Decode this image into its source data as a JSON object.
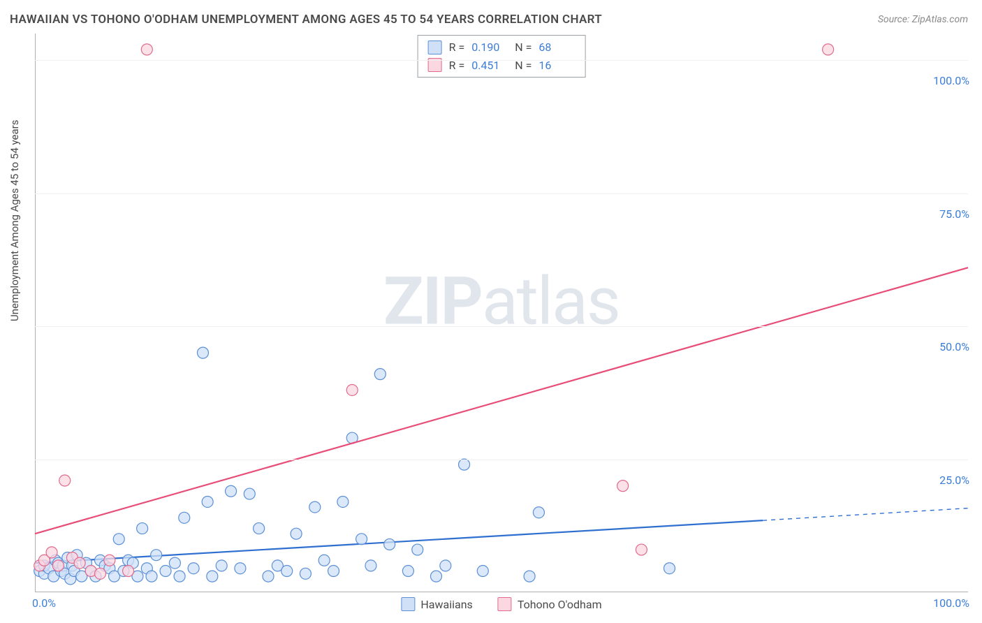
{
  "title": "HAWAIIAN VS TOHONO O'ODHAM UNEMPLOYMENT AMONG AGES 45 TO 54 YEARS CORRELATION CHART",
  "source": "Source: ZipAtlas.com",
  "ylabel": "Unemployment Among Ages 45 to 54 years",
  "watermark_a": "ZIP",
  "watermark_b": "atlas",
  "chart": {
    "type": "scatter+regression",
    "xlim": [
      0,
      100
    ],
    "ylim": [
      0,
      105
    ],
    "y_ticks": [
      {
        "v": 25,
        "label": "25.0%"
      },
      {
        "v": 50,
        "label": "50.0%"
      },
      {
        "v": 75,
        "label": "75.0%"
      },
      {
        "v": 100,
        "label": "100.0%"
      }
    ],
    "x_ticks": [
      {
        "v": 0,
        "label": "0.0%"
      },
      {
        "v": 100,
        "label": "100.0%"
      }
    ],
    "background_color": "#ffffff",
    "grid_color": "#f0f0f0",
    "axis_color": "#b0b0b0",
    "tick_label_color": "#3b7dd8",
    "marker_radius": 8,
    "marker_stroke_width": 1.2,
    "line_width": 2.2,
    "series": [
      {
        "key": "hawaiians",
        "name": "Hawaiians",
        "fill": "#cfe0f7",
        "stroke": "#5b8fd6",
        "line_color": "#2f6fd0",
        "R": "0.190",
        "N": "68",
        "regression": {
          "x1": 0,
          "y1": 5.5,
          "x2": 78,
          "y2": 13.5,
          "dash_from_x": 78,
          "dash_to_x": 100,
          "dash_to_y": 15.8
        },
        "points": [
          [
            0.5,
            4
          ],
          [
            1,
            3.5
          ],
          [
            1,
            5
          ],
          [
            1.5,
            4.5
          ],
          [
            2,
            3
          ],
          [
            2.2,
            6
          ],
          [
            2.5,
            5.5
          ],
          [
            2.8,
            4
          ],
          [
            3,
            5
          ],
          [
            3.2,
            3.5
          ],
          [
            3.5,
            6.5
          ],
          [
            3.8,
            2.5
          ],
          [
            4,
            5
          ],
          [
            4.2,
            4
          ],
          [
            4.5,
            7
          ],
          [
            5,
            3
          ],
          [
            5.5,
            5.5
          ],
          [
            6,
            4
          ],
          [
            6.5,
            3
          ],
          [
            7,
            6
          ],
          [
            7.5,
            5
          ],
          [
            8,
            4.5
          ],
          [
            8.5,
            3
          ],
          [
            9,
            10
          ],
          [
            9.5,
            4
          ],
          [
            10,
            6
          ],
          [
            10.5,
            5.5
          ],
          [
            11,
            3
          ],
          [
            11.5,
            12
          ],
          [
            12,
            4.5
          ],
          [
            12.5,
            3
          ],
          [
            13,
            7
          ],
          [
            14,
            4
          ],
          [
            15,
            5.5
          ],
          [
            15.5,
            3
          ],
          [
            16,
            14
          ],
          [
            17,
            4.5
          ],
          [
            18,
            45
          ],
          [
            18.5,
            17
          ],
          [
            19,
            3
          ],
          [
            20,
            5
          ],
          [
            21,
            19
          ],
          [
            22,
            4.5
          ],
          [
            23,
            18.5
          ],
          [
            24,
            12
          ],
          [
            25,
            3
          ],
          [
            26,
            5
          ],
          [
            27,
            4
          ],
          [
            28,
            11
          ],
          [
            29,
            3.5
          ],
          [
            30,
            16
          ],
          [
            31,
            6
          ],
          [
            32,
            4
          ],
          [
            33,
            17
          ],
          [
            34,
            29
          ],
          [
            35,
            10
          ],
          [
            36,
            5
          ],
          [
            37,
            41
          ],
          [
            38,
            9
          ],
          [
            40,
            4
          ],
          [
            41,
            8
          ],
          [
            43,
            3
          ],
          [
            44,
            5
          ],
          [
            46,
            24
          ],
          [
            48,
            4
          ],
          [
            53,
            3
          ],
          [
            54,
            15
          ],
          [
            68,
            4.5
          ]
        ]
      },
      {
        "key": "tohono",
        "name": "Tohono O'odham",
        "fill": "#fbd7e1",
        "stroke": "#e06b8c",
        "line_color": "#e84d77",
        "R": "0.451",
        "N": "16",
        "regression": {
          "x1": 0,
          "y1": 11,
          "x2": 100,
          "y2": 61
        },
        "points": [
          [
            0.5,
            5
          ],
          [
            1,
            6
          ],
          [
            1.8,
            7.5
          ],
          [
            2.5,
            5
          ],
          [
            3.2,
            21
          ],
          [
            4,
            6.5
          ],
          [
            4.8,
            5.5
          ],
          [
            6,
            4
          ],
          [
            7,
            3.5
          ],
          [
            10,
            4
          ],
          [
            12,
            102
          ],
          [
            34,
            38
          ],
          [
            63,
            20
          ],
          [
            65,
            8
          ],
          [
            85,
            102
          ],
          [
            8,
            6
          ]
        ]
      }
    ],
    "legend": [
      {
        "series": "hawaiians"
      },
      {
        "series": "tohono"
      }
    ]
  }
}
